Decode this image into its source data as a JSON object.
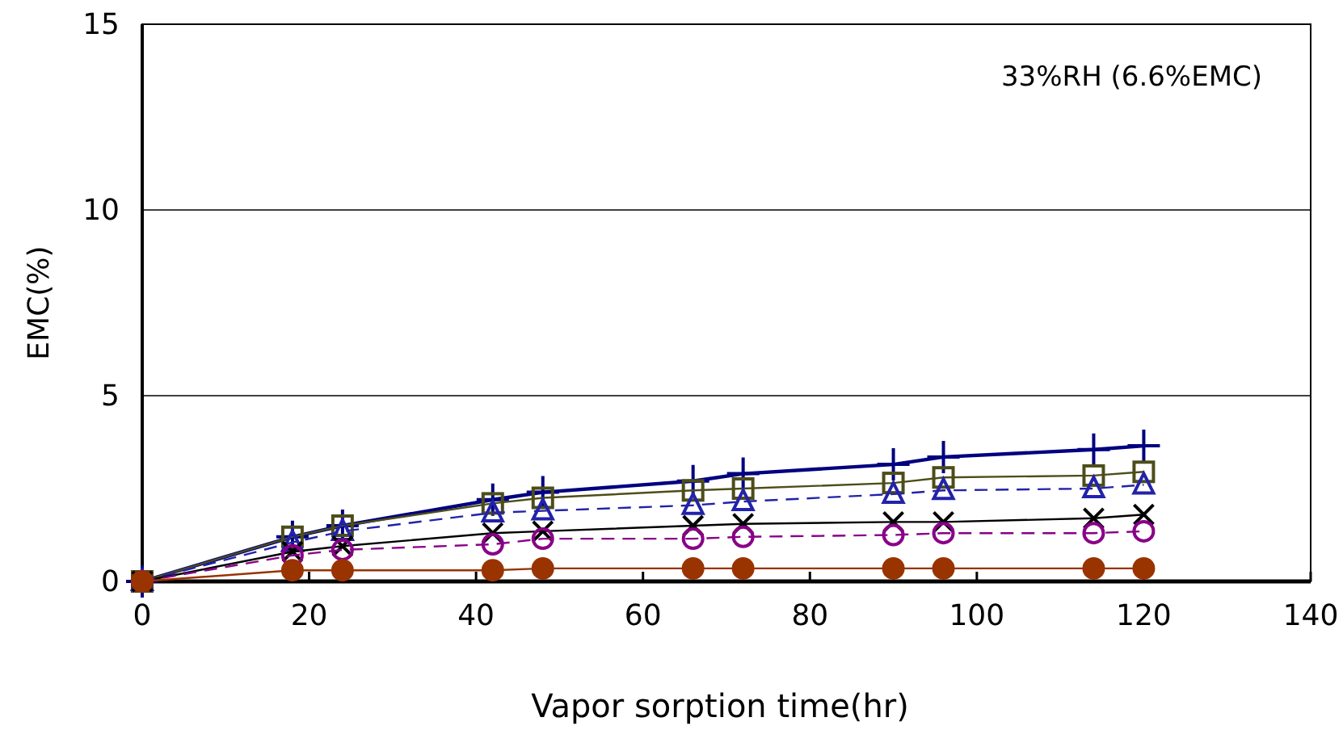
{
  "chart_data": {
    "type": "line",
    "xlabel": "Vapor sorption time(hr)",
    "ylabel": "EMC(%)",
    "annotations": [
      "33%RH (6.6%EMC)"
    ],
    "x": [
      0,
      18,
      24,
      42,
      48,
      66,
      72,
      90,
      96,
      114,
      120
    ],
    "xlim": [
      0,
      140
    ],
    "xticks": [
      0,
      20,
      40,
      60,
      80,
      100,
      120,
      140
    ],
    "ylim": [
      0,
      15
    ],
    "yticks": [
      0,
      5,
      10,
      15
    ],
    "grid": "y",
    "series": [
      {
        "color": "#000080",
        "marker": "plus",
        "line_style": "solid",
        "values": [
          0,
          1.2,
          1.5,
          2.2,
          2.4,
          2.7,
          2.9,
          3.15,
          3.35,
          3.55,
          3.65
        ]
      },
      {
        "color": "#4d4d1a",
        "marker": "square",
        "line_style": "solid",
        "values": [
          0,
          1.2,
          1.5,
          2.1,
          2.25,
          2.45,
          2.5,
          2.65,
          2.8,
          2.85,
          2.95
        ]
      },
      {
        "color": "#2222aa",
        "marker": "triangle",
        "line_style": "dashed",
        "values": [
          0,
          1.05,
          1.35,
          1.85,
          1.9,
          2.05,
          2.15,
          2.35,
          2.45,
          2.5,
          2.6
        ]
      },
      {
        "color": "#000000",
        "marker": "cross",
        "line_style": "solid",
        "values": [
          0,
          0.8,
          0.95,
          1.3,
          1.35,
          1.5,
          1.55,
          1.6,
          1.6,
          1.7,
          1.8
        ]
      },
      {
        "color": "#880088",
        "marker": "circle",
        "line_style": "dashed",
        "values": [
          0,
          0.7,
          0.85,
          1.0,
          1.15,
          1.15,
          1.2,
          1.25,
          1.3,
          1.3,
          1.35
        ]
      },
      {
        "color": "#993300",
        "marker": "circle",
        "line_style": "solid",
        "values": [
          0,
          0.3,
          0.3,
          0.3,
          0.35,
          0.35,
          0.35,
          0.35,
          0.35,
          0.35,
          0.35
        ]
      }
    ]
  }
}
